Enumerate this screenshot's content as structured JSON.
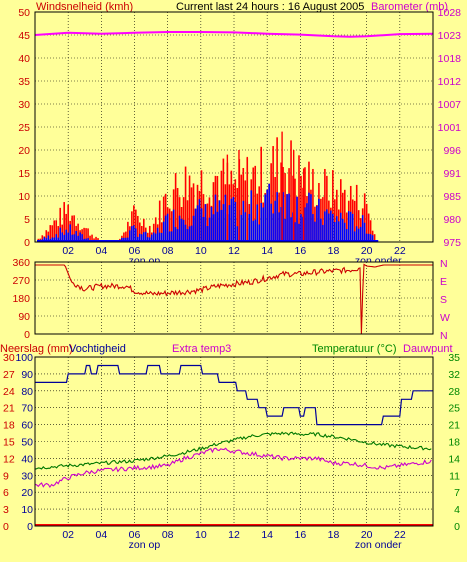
{
  "header": {
    "left": "Windsnelheid (kmh)",
    "center": "Current last 24 hours : 16 August 2005",
    "right": "Barometer (mb)"
  },
  "colors": {
    "background": "#ffff99",
    "wind_avg": "#0000ff",
    "wind_gust": "#ff0000",
    "barometer": "#ff00ff",
    "direction": "#cc0000",
    "humidity": "#000099",
    "temperature": "#007700",
    "dewpoint": "#cc00cc",
    "rain": "#ff0000",
    "left_labels": "#cc0000",
    "right_labels": "#cc00cc",
    "green_labels": "#008800"
  },
  "chart_data": [
    {
      "name": "wind",
      "type": "bar",
      "ylabel": "Windsnelheid (kmh)",
      "yticks": [
        "0",
        "5",
        "10",
        "15",
        "20",
        "25",
        "30",
        "35",
        "40",
        "45",
        "50"
      ],
      "ylim": [
        0,
        50
      ],
      "y2label": "Barometer (mb)",
      "y2ticks": [
        "975",
        "980",
        "985",
        "991",
        "996",
        "1001",
        "1007",
        "1012",
        "1018",
        "1023",
        "1028"
      ],
      "y2lim": [
        975,
        1028
      ],
      "xticks": [
        "02",
        "04",
        "06",
        "08",
        "10",
        "12",
        "14",
        "16",
        "18",
        "20",
        "22"
      ],
      "xlim": [
        0,
        24
      ],
      "annotations": [
        {
          "text": "zon op",
          "x": 6.6
        },
        {
          "text": "zon onder",
          "x": 20.7
        }
      ],
      "barometer_series": {
        "x": [
          0,
          2,
          4,
          6,
          8,
          10,
          12,
          14,
          16,
          18,
          19,
          20,
          22,
          24
        ],
        "values": [
          1022.7,
          1023.2,
          1023.0,
          1023.2,
          1023.4,
          1023.4,
          1023.3,
          1023.0,
          1022.8,
          1022.4,
          1022.3,
          1022.4,
          1022.9,
          1023.0
        ]
      },
      "gust_profile": {
        "x": [
          0,
          2,
          3,
          4,
          5,
          6,
          7,
          8,
          9,
          10,
          11,
          12,
          13,
          14,
          15,
          16,
          17,
          18,
          19,
          20,
          20.6
        ],
        "values": [
          0,
          7,
          3,
          0,
          0,
          6,
          3,
          10,
          13,
          13,
          14,
          12,
          14,
          15,
          18,
          14,
          12,
          11,
          10,
          8,
          0
        ]
      },
      "avg_profile": {
        "x": [
          0,
          2,
          3,
          4,
          5,
          6,
          7,
          8,
          9,
          10,
          11,
          12,
          13,
          14,
          15,
          16,
          17,
          18,
          19,
          20,
          20.6
        ],
        "values": [
          0,
          3,
          1,
          0,
          0,
          3,
          1,
          5,
          7,
          7,
          8,
          7,
          8,
          10,
          12,
          9,
          7,
          6,
          5,
          4,
          0
        ]
      }
    },
    {
      "name": "direction",
      "type": "line",
      "yticks": [
        "0",
        "90",
        "180",
        "270",
        "360"
      ],
      "ylim": [
        0,
        360
      ],
      "y2ticks": [
        "N",
        "W",
        "S",
        "E",
        "N"
      ],
      "xlim": [
        0,
        24
      ],
      "series": {
        "x": [
          0,
          1.8,
          2.2,
          3,
          4,
          5.5,
          6,
          7,
          8,
          9,
          10,
          11,
          12,
          13,
          14,
          15,
          16,
          17,
          18,
          19,
          19.6,
          19.7,
          19.8,
          20,
          20.5,
          21,
          24
        ],
        "values": [
          345,
          345,
          260,
          225,
          240,
          240,
          215,
          200,
          205,
          210,
          220,
          240,
          250,
          260,
          280,
          300,
          300,
          310,
          315,
          320,
          330,
          0,
          350,
          340,
          335,
          345,
          345
        ]
      }
    },
    {
      "name": "climate",
      "type": "line",
      "ylabel": "Neerslag (mm)",
      "ylabel2": "Vochtigheid",
      "title": "Extra temp3",
      "y2label": "Temperatuur (°C)",
      "y2label2": "Dauwpunt",
      "rain_ticks": [
        "0",
        "3",
        "6",
        "9",
        "12",
        "15",
        "18",
        "21",
        "24",
        "27",
        "30"
      ],
      "humidity_ticks": [
        "0",
        "10",
        "20",
        "30",
        "40",
        "50",
        "60",
        "70",
        "80",
        "90",
        "100"
      ],
      "temp_ticks": [
        "0",
        "4",
        "7",
        "11",
        "14",
        "18",
        "21",
        "25",
        "28",
        "32",
        "35"
      ],
      "xticks": [
        "02",
        "04",
        "06",
        "08",
        "10",
        "12",
        "14",
        "16",
        "18",
        "20",
        "22"
      ],
      "xlim": [
        0,
        24
      ],
      "annotations": [
        {
          "text": "zon op",
          "x": 6.6
        },
        {
          "text": "zon onder",
          "x": 20.7
        }
      ],
      "humidity": {
        "x": [
          0,
          1.9,
          2.0,
          3.0,
          3.1,
          3.3,
          3.4,
          3.7,
          3.8,
          5.0,
          5.1,
          6.7,
          6.8,
          7.5,
          7.6,
          8.7,
          8.8,
          10.0,
          10.1,
          11.0,
          11.1,
          12.1,
          12.2,
          12.7,
          12.8,
          13.4,
          13.5,
          13.9,
          14.0,
          14.9,
          15.0,
          15.9,
          16.0,
          16.2,
          16.3,
          16.9,
          17.0,
          20.9,
          21.0,
          22.0,
          22.1,
          22.7,
          22.8,
          23.5,
          24
        ],
        "values": [
          85,
          85,
          90,
          90,
          95,
          95,
          90,
          90,
          95,
          95,
          90,
          90,
          95,
          95,
          90,
          90,
          95,
          95,
          90,
          90,
          85,
          85,
          80,
          80,
          75,
          75,
          70,
          70,
          65,
          65,
          70,
          70,
          65,
          65,
          70,
          70,
          60,
          60,
          65,
          65,
          75,
          75,
          80,
          80,
          80
        ]
      },
      "temperature": {
        "x": [
          0,
          2,
          4,
          6,
          8,
          9,
          10,
          11,
          12,
          13,
          14,
          15,
          16,
          17,
          18,
          19,
          20,
          21,
          22,
          23,
          24
        ],
        "values": [
          12.0,
          12.5,
          13.0,
          13.5,
          14.5,
          15.2,
          16.0,
          17.0,
          17.8,
          18.6,
          19.0,
          19.2,
          19.0,
          19.0,
          18.5,
          18.0,
          17.3,
          16.8,
          16.5,
          16.2,
          16.0
        ]
      },
      "dewpoint": {
        "x": [
          0,
          1,
          2,
          2.5,
          3,
          4,
          6,
          8,
          9,
          10,
          11,
          12,
          13,
          14,
          15,
          16,
          17,
          18,
          19,
          20,
          21,
          22,
          23,
          24
        ],
        "values": [
          8.5,
          8.5,
          10.0,
          10.5,
          11.0,
          11.5,
          12.0,
          12.5,
          14.0,
          15.0,
          16.0,
          15.5,
          15.0,
          14.5,
          14.0,
          14.0,
          14.0,
          13.0,
          13.0,
          12.5,
          12.0,
          12.5,
          13.0,
          13.5
        ]
      },
      "rain": {
        "x": [
          0,
          24
        ],
        "values": [
          0,
          0
        ]
      }
    }
  ]
}
